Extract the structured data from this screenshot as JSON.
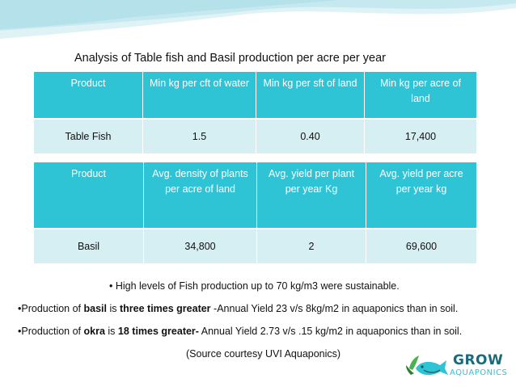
{
  "title": "Analysis of  Table fish and Basil production per acre per year",
  "table1": {
    "headers": [
      "Product",
      "Min kg per cft  of water",
      "Min kg per sft of land",
      "Min kg per acre of land"
    ],
    "row": [
      "Table Fish",
      "1.5",
      "0.40",
      "17,400"
    ]
  },
  "table2": {
    "headers": [
      "Product",
      "Avg. density of plants per acre of land",
      "Avg. yield per plant per year Kg",
      "Avg. yield per acre per year kg"
    ],
    "row": [
      "Basil",
      "34,800",
      "2",
      "69,600"
    ]
  },
  "notes": {
    "n1": "• High levels of Fish production up to 70 kg/m3 were sustainable.",
    "n2_pre": "•Production of ",
    "n2_b1": "basil",
    "n2_mid": " is ",
    "n2_b2": "three times greater",
    "n2_post": " -Annual Yield 23 v/s 8kg/m2 in aquaponics than in soil.",
    "n3_pre": "•Production of ",
    "n3_b1": "okra",
    "n3_mid": " is ",
    "n3_b2": "18 times greater-",
    "n3_post": " Annual Yield 2.73 v/s .15 kg/m2 in aquaponics than in soil.",
    "n4": "(Source courtesy UVI Aquaponics)"
  },
  "logo": {
    "line1": "GROW",
    "line2": "AQUAPONICS"
  },
  "colors": {
    "header": "#2ec4d6",
    "row": "#d6eff3",
    "wave": "#bfe6ee"
  }
}
